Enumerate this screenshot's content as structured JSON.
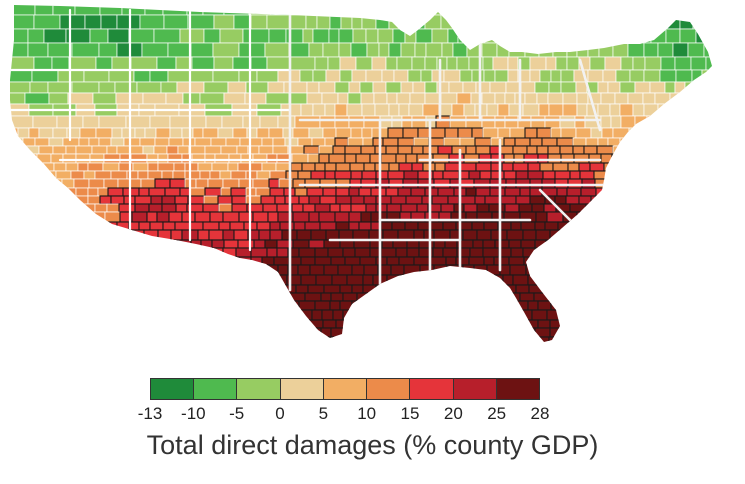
{
  "map": {
    "region": "Contiguous United States (county level)",
    "colors": {
      "cell_border": "#ffffff",
      "state_border_west": "#ffffff",
      "state_border_south": "#f2f2f2",
      "county_outline_hot": "#1a1a1a"
    }
  },
  "legend": {
    "title": "Total direct damages (% county GDP)",
    "bins": [
      {
        "from": -13,
        "to": -10,
        "color": "#1f8b3a"
      },
      {
        "from": -10,
        "to": -5,
        "color": "#4fba4f"
      },
      {
        "from": -5,
        "to": 0,
        "color": "#97cc62"
      },
      {
        "from": 0,
        "to": 5,
        "color": "#ecd09a"
      },
      {
        "from": 5,
        "to": 10,
        "color": "#f2ae64"
      },
      {
        "from": 10,
        "to": 15,
        "color": "#ec8b4a"
      },
      {
        "from": 15,
        "to": 20,
        "color": "#e5343a"
      },
      {
        "from": 20,
        "to": 25,
        "color": "#b71f2b"
      },
      {
        "from": 25,
        "to": 28,
        "color": "#6d1212"
      }
    ],
    "ticks": [
      "-13",
      "-10",
      "-5",
      "0",
      "5",
      "10",
      "15",
      "20",
      "25",
      "28"
    ]
  }
}
